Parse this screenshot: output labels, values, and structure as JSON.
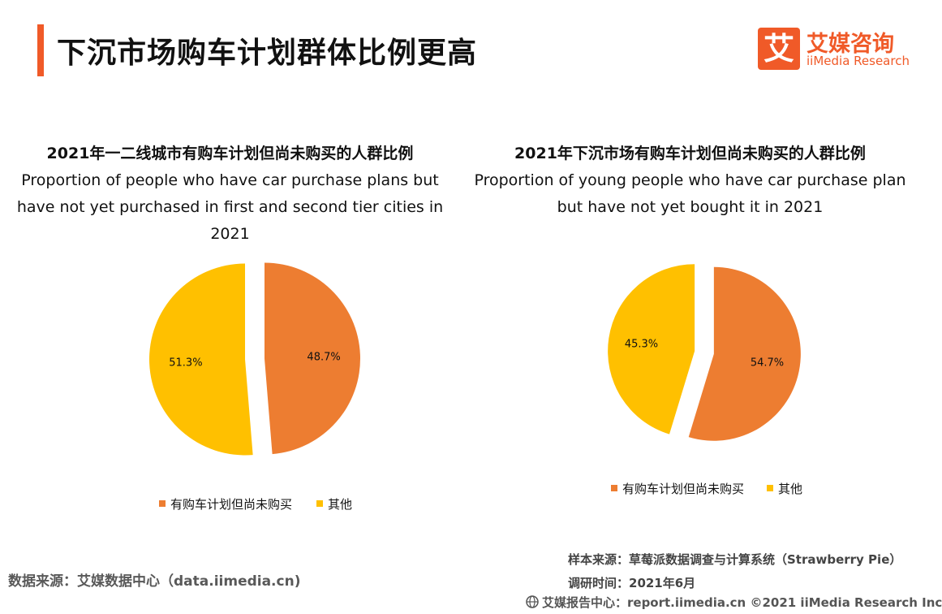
{
  "header": {
    "title": "下沉市场购车计划群体比例更高"
  },
  "logo": {
    "mark": "艾",
    "name": "艾媒咨询",
    "subtitle": "iiMedia Research"
  },
  "colors": {
    "accent": "#f05a28",
    "orange": "#ed7d31",
    "yellow": "#ffc000"
  },
  "chart_data": [
    {
      "type": "pie",
      "title": "2021年一二线城市有购车计划但尚未购买的人群比例",
      "subtitle": "Proportion of people who have car purchase plans but have not yet purchased in first and second tier cities in 2021",
      "slices": [
        {
          "label": "有购车计划但尚未购买",
          "value": 48.7,
          "display": "48.7%",
          "color": "#ed7d31"
        },
        {
          "label": "其他",
          "value": 51.3,
          "display": "51.3%",
          "color": "#ffc000"
        }
      ],
      "legend": "bottom"
    },
    {
      "type": "pie",
      "title": "2021年下沉市场有购车计划但尚未购买的人群比例",
      "subtitle": "Proportion of young people who have car purchase plan but have not yet bought it in 2021",
      "slices": [
        {
          "label": "有购车计划但尚未购买",
          "value": 54.7,
          "display": "54.7%",
          "color": "#ed7d31"
        },
        {
          "label": "其他",
          "value": 45.3,
          "display": "45.3%",
          "color": "#ffc000"
        }
      ],
      "legend": "bottom"
    }
  ],
  "footer": {
    "data_source": "数据来源：艾媒数据中心（data.iimedia.cn)",
    "sample_source": "样本来源：草莓派数据调查与计算系统（Strawberry Pie）",
    "survey_time": "调研时间：2021年6月",
    "report_center": "艾媒报告中心：report.iimedia.cn  ©2021  iiMedia Research  Inc"
  }
}
